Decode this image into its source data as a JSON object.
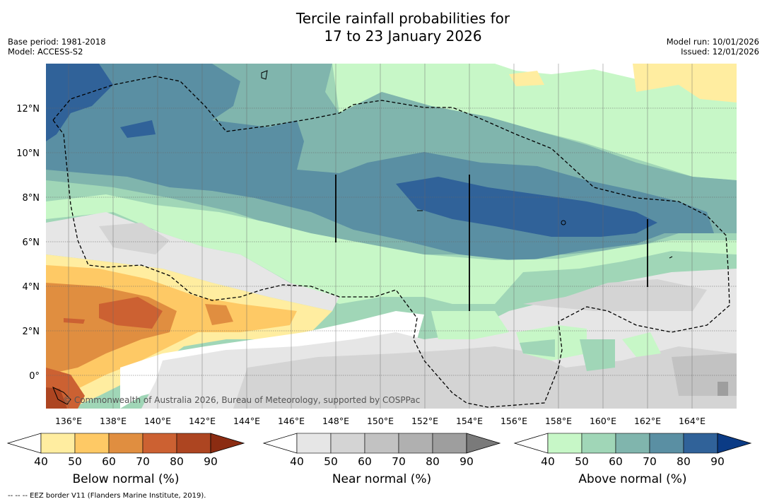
{
  "title_line1": "Tercile rainfall probabilities for",
  "title_line2": "17 to 23 January 2026",
  "meta_left": {
    "line1": "Base period: 1981-2018",
    "line2": "Model: ACCESS-S2"
  },
  "meta_right": {
    "line1": "Model run: 10/01/2026",
    "line2": "Issued: 12/01/2026"
  },
  "copyright": "© Commonwealth of Australia 2026, Bureau of Meteorology, supported by COSPPac",
  "footnote": "--  --  -- EEZ border V11 (Flanders Marine Institute, 2019).",
  "axes": {
    "lon_labels": [
      "136°E",
      "138°E",
      "140°E",
      "142°E",
      "144°E",
      "146°E",
      "148°E",
      "150°E",
      "152°E",
      "154°E",
      "156°E",
      "158°E",
      "160°E",
      "162°E",
      "164°E"
    ],
    "lat_labels": [
      "12°N",
      "10°N",
      "8°N",
      "6°N",
      "4°N",
      "2°N",
      "0°"
    ]
  },
  "colorbars": [
    {
      "name": "below",
      "title": "Below normal (%)",
      "ticks": [
        "40",
        "50",
        "60",
        "70",
        "80",
        "90"
      ],
      "colors": [
        "#ffffff",
        "#ffeda0",
        "#fec965",
        "#e08e40",
        "#cc6132",
        "#ad4521",
        "#8b2c12"
      ]
    },
    {
      "name": "near",
      "title": "Near normal (%)",
      "ticks": [
        "40",
        "50",
        "60",
        "70",
        "80",
        "90"
      ],
      "colors": [
        "#ffffff",
        "#e6e6e6",
        "#d4d4d4",
        "#c2c2c2",
        "#b0b0b0",
        "#9e9e9e",
        "#7a7a7a"
      ]
    },
    {
      "name": "above",
      "title": "Above normal (%)",
      "ticks": [
        "40",
        "50",
        "60",
        "70",
        "80",
        "90"
      ],
      "colors": [
        "#ffffff",
        "#c7f7c7",
        "#a0d6b7",
        "#80b5ad",
        "#5a8fa3",
        "#306299",
        "#0b3b85"
      ]
    }
  ]
}
